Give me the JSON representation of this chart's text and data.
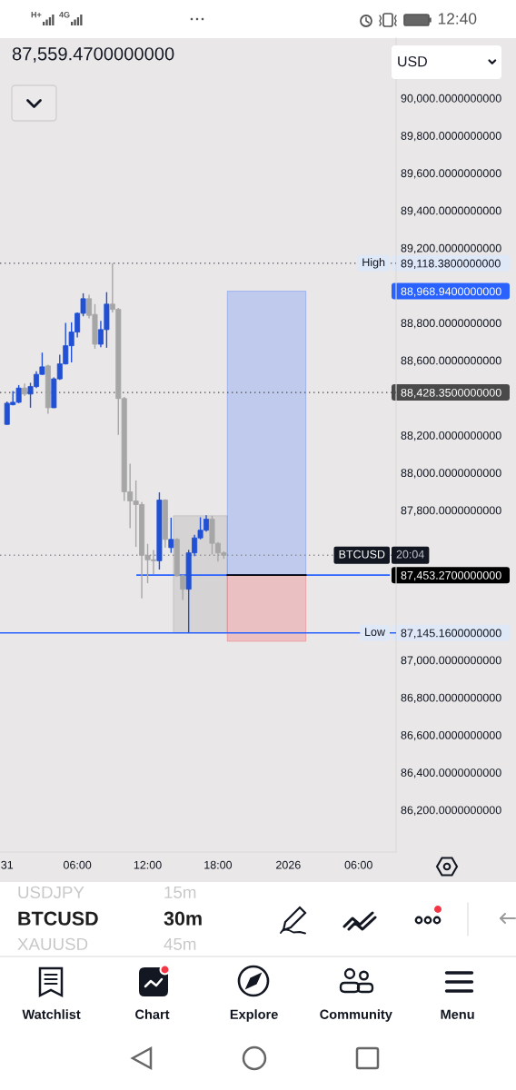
{
  "chart_data": {
    "type": "candlestick",
    "x": [
      "2025-12-31T00:00",
      "2025-12-31T00:30",
      "2025-12-31T01:00",
      "2025-12-31T01:30",
      "2025-12-31T02:00",
      "2025-12-31T02:30",
      "2025-12-31T03:00",
      "2025-12-31T03:30",
      "2025-12-31T04:00",
      "2025-12-31T04:30",
      "2025-12-31T05:00",
      "2025-12-31T05:30",
      "2025-12-31T06:00",
      "2025-12-31T06:30",
      "2025-12-31T07:00",
      "2025-12-31T07:30",
      "2025-12-31T08:00",
      "2025-12-31T08:30",
      "2025-12-31T09:00",
      "2025-12-31T09:30",
      "2025-12-31T10:00",
      "2025-12-31T10:30",
      "2025-12-31T11:00",
      "2025-12-31T11:30",
      "2025-12-31T12:00",
      "2025-12-31T12:30",
      "2025-12-31T13:00",
      "2025-12-31T13:30",
      "2025-12-31T14:00",
      "2025-12-31T14:30",
      "2025-12-31T15:00",
      "2025-12-31T15:30",
      "2025-12-31T16:00",
      "2025-12-31T16:30",
      "2025-12-31T17:00",
      "2025-12-31T17:30",
      "2025-12-31T18:00",
      "2025-12-31T18:30"
    ],
    "ohlc": [
      [
        88258,
        88380,
        88255,
        88371
      ],
      [
        88363,
        88436,
        88360,
        88376
      ],
      [
        88376,
        88468,
        88371,
        88452
      ],
      [
        88452,
        88476,
        88409,
        88420
      ],
      [
        88420,
        88480,
        88347,
        88460
      ],
      [
        88460,
        88541,
        88452,
        88525
      ],
      [
        88525,
        88641,
        88522,
        88565
      ],
      [
        88570,
        88577,
        88315,
        88347
      ],
      [
        88347,
        88509,
        88345,
        88501
      ],
      [
        88501,
        88630,
        88496,
        88581
      ],
      [
        88581,
        88800,
        88578,
        88678
      ],
      [
        88678,
        88803,
        88589,
        88751
      ],
      [
        88751,
        88856,
        88722,
        88851
      ],
      [
        88851,
        88958,
        88835,
        88929
      ],
      [
        88929,
        88950,
        88824,
        88840
      ],
      [
        88845,
        88900,
        88662,
        88686
      ],
      [
        88686,
        88811,
        88670,
        88764
      ],
      [
        88764,
        88964,
        88667,
        88900
      ],
      [
        88900,
        89118.38,
        88856,
        88872
      ],
      [
        88872,
        88880,
        88202,
        88396
      ],
      [
        88396,
        88404,
        87849,
        87898
      ],
      [
        87898,
        88048,
        87704,
        87849
      ],
      [
        87849,
        87959,
        87604,
        87830
      ],
      [
        87830,
        87843,
        87329,
        87559
      ],
      [
        87559,
        87620,
        87410,
        87535
      ],
      [
        87535,
        87588,
        87459,
        87530
      ],
      [
        87530,
        87895,
        87483,
        87854
      ],
      [
        87854,
        87858,
        87600,
        87644
      ],
      [
        87600,
        87760,
        87572,
        87644
      ],
      [
        87644,
        87650,
        87445,
        87450
      ],
      [
        87450,
        87455,
        87321,
        87378
      ],
      [
        87378,
        87588,
        87145.16,
        87572
      ],
      [
        87572,
        87669,
        87555,
        87652
      ],
      [
        87652,
        87762,
        87644,
        87693
      ],
      [
        87693,
        87773,
        87685,
        87752
      ],
      [
        87752,
        87770,
        87564,
        87623
      ],
      [
        87623,
        87630,
        87526,
        87572
      ],
      [
        87572,
        87580,
        87540,
        87559.47
      ]
    ],
    "colors": [
      "#2150d4",
      "#2150d4",
      "#2150d4",
      "#a6a6a6",
      "#2150d4",
      "#2150d4",
      "#2150d4",
      "#a6a6a6",
      "#2150d4",
      "#2150d4",
      "#2150d4",
      "#2150d4",
      "#2150d4",
      "#2150d4",
      "#a6a6a6",
      "#a6a6a6",
      "#2150d4",
      "#2150d4",
      "#a6a6a6",
      "#a6a6a6",
      "#a6a6a6",
      "#a6a6a6",
      "#a6a6a6",
      "#a6a6a6",
      "#a6a6a6",
      "#a6a6a6",
      "#2150d4",
      "#a6a6a6",
      "#2150d4",
      "#a6a6a6",
      "#a6a6a6",
      "#2150d4",
      "#2150d4",
      "#2150d4",
      "#2150d4",
      "#a6a6a6",
      "#a6a6a6",
      "#a6a6a6"
    ],
    "series": [
      {
        "type": "line",
        "x": [
          "2025-12-31T14:12",
          "2025-12-31T18:48"
        ],
        "values": [
          null,
          null
        ],
        "lower": [
          87145.16,
          87145.16
        ],
        "upper": [
          87770,
          87770
        ],
        "color": "#8c8c8c"
      },
      {
        "type": "line",
        "x": [
          "2025-12-31T18:48",
          "2026-01-01T01:30"
        ],
        "values": [
          null,
          null
        ],
        "lower": [
          87453.27,
          87453.27
        ],
        "upper": [
          88968.94,
          88968.94
        ],
        "color": "#2962ff"
      },
      {
        "type": "line",
        "x": [
          "2025-12-31T18:48",
          "2026-01-01T01:30"
        ],
        "values": [
          null,
          null
        ],
        "lower": [
          87100,
          87100
        ],
        "upper": [
          87453.27,
          87453.27
        ],
        "color": "#f23645"
      },
      {
        "type": "line",
        "x": [
          "2025-12-31T11:06",
          "2026-01-01T08:36"
        ],
        "values": [
          87453.27,
          87453.27
        ],
        "color": "#2962ff"
      },
      {
        "type": "line",
        "x": [
          "2025-12-31T18:48",
          "2026-01-01T01:30"
        ],
        "values": [
          87453.27,
          87453.27
        ],
        "color": "#000000"
      }
    ],
    "ref_lines": [
      {
        "axis": "y",
        "value": 89118.38,
        "label": "High",
        "color": "#6a6d78",
        "line_style": "dotted"
      },
      {
        "axis": "y",
        "value": 88428.35,
        "color": "#4a4a4a",
        "line_style": "dotted"
      },
      {
        "axis": "y",
        "value": 87559.47,
        "color": "#8a8d96",
        "line_style": "dotted"
      },
      {
        "axis": "y",
        "value": 87145.16,
        "label": "Low",
        "color": "#2962ff",
        "line_style": "solid"
      }
    ],
    "xlim": [
      "2025-12-30T23:24",
      "2026-01-01T09:12"
    ],
    "ylim": [
      85975,
      90320
    ],
    "xticks": [
      {
        "value": "2025-12-31T00:00",
        "label": "31"
      },
      {
        "value": "2025-12-31T06:00",
        "label": "06:00"
      },
      {
        "value": "2025-12-31T12:00",
        "label": "12:00"
      },
      {
        "value": "2025-12-31T18:00",
        "label": "18:00"
      },
      {
        "value": "2026-01-01T00:00",
        "label": "2026"
      },
      {
        "value": "2026-01-01T06:00",
        "label": "06:00"
      }
    ],
    "yticks": [
      {
        "value": 86200,
        "label": "86,200.0000000000"
      },
      {
        "value": 86400,
        "label": "86,400.0000000000"
      },
      {
        "value": 86600,
        "label": "86,600.0000000000"
      },
      {
        "value": 86800,
        "label": "86,800.0000000000"
      },
      {
        "value": 87000,
        "label": "87,000.0000000000"
      },
      {
        "value": 87145.16,
        "label": "87,145.1600000000"
      },
      {
        "value": 87453.27,
        "label": "87,453.2700000000"
      },
      {
        "value": 87800,
        "label": "87,800.0000000000"
      },
      {
        "value": 88000,
        "label": "88,000.0000000000"
      },
      {
        "value": 88200,
        "label": "88,200.0000000000"
      },
      {
        "value": 88428.35,
        "label": "88,428.3500000000"
      },
      {
        "value": 88600,
        "label": "88,600.0000000000"
      },
      {
        "value": 88800,
        "label": "88,800.0000000000"
      },
      {
        "value": 88968.94,
        "label": "88,968.9400000000"
      },
      {
        "value": 89118.38,
        "label": "89,118.3800000000"
      },
      {
        "value": 89200,
        "label": "89,200.0000000000"
      },
      {
        "value": 89400,
        "label": "89,400.0000000000"
      },
      {
        "value": 89600,
        "label": "89,600.0000000000"
      },
      {
        "value": 89800,
        "label": "89,800.0000000000"
      },
      {
        "value": 90000,
        "label": "90,000.0000000000"
      }
    ],
    "annotations": [
      "12:40",
      "H+",
      "4G",
      "87,559.4700000000",
      "USD",
      "USDJPY",
      "15m",
      "BTCUSD",
      "30m",
      "XAUUSD",
      "45m",
      "Watchlist",
      "Chart",
      "Explore",
      "Community",
      "Menu",
      {
        "text": "BTCUSD",
        "y": 87559.47
      },
      {
        "text": "20:04",
        "y": 87559.47
      }
    ]
  }
}
